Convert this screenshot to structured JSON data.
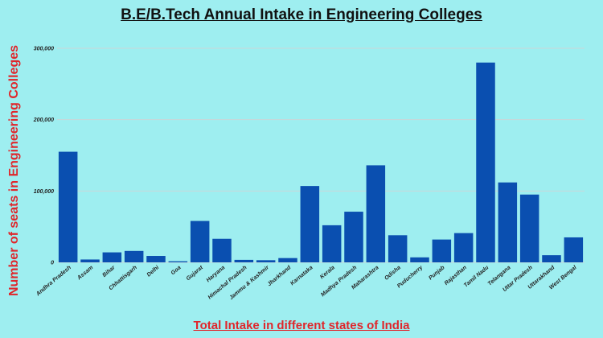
{
  "chart_data": {
    "type": "bar",
    "title": "B.E/B.Tech Annual Intake in Engineering Colleges",
    "xlabel": "Total Intake in different states of India",
    "ylabel": "Number of seats in Engineering Colleges",
    "ylim": [
      0,
      300000
    ],
    "yticks": [
      0,
      100000,
      200000,
      300000
    ],
    "ytick_labels": [
      "0",
      "100,000",
      "200,000",
      "300,000"
    ],
    "grid": true,
    "bar_color": "#0a4fb0",
    "categories": [
      "Andhra Pradesh",
      "Assam",
      "Bihar",
      "Chhattisgarh",
      "Delhi",
      "Goa",
      "Gujarat",
      "Haryana",
      "Himachal Pradesh",
      "Jammu & Kashmir",
      "Jharkhand",
      "Karnataka",
      "Kerala",
      "Madhya Pradesh",
      "Maharashtra",
      "Odisha",
      "Puducherry",
      "Punjab",
      "Rajasthan",
      "Tamil Nadu",
      "Telangana",
      "Uttar Pradesh",
      "Uttarakhand",
      "West Bengal"
    ],
    "values": [
      155000,
      4000,
      14000,
      16000,
      9000,
      1500,
      58000,
      33000,
      3500,
      3000,
      6000,
      107000,
      52000,
      71000,
      136000,
      38000,
      7000,
      32000,
      41000,
      280000,
      112000,
      95000,
      10000,
      35000
    ]
  }
}
